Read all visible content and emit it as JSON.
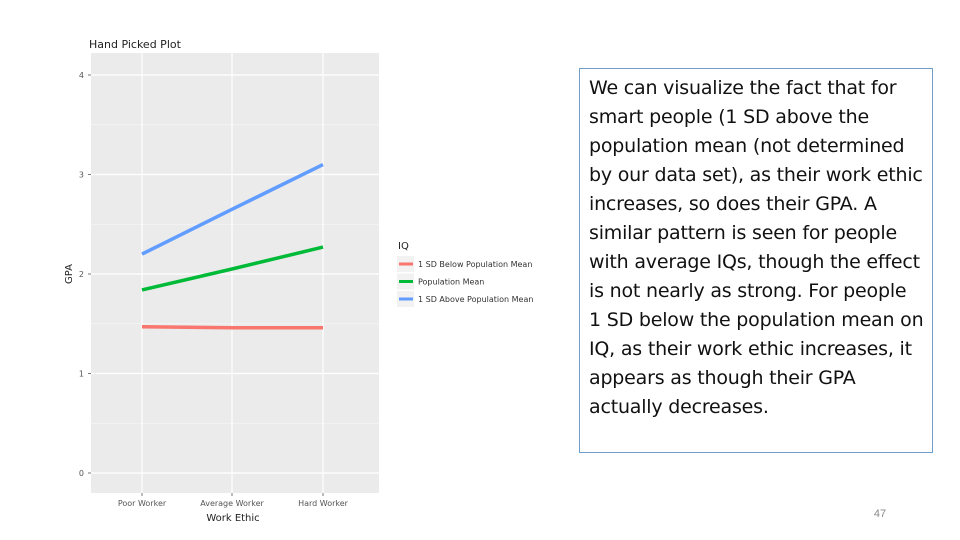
{
  "slide": {
    "body_text": "We can visualize the fact that for smart people (1 SD above the population mean (not determined by our data set), as their work ethic increases, so does their GPA. A similar pattern is seen for people with average IQs, though the effect is not nearly as strong. For people 1 SD below the population mean on IQ, as their work ethic increases, it appears as though their GPA actually decreases.",
    "slide_number": "47"
  },
  "chart_data": {
    "type": "line",
    "title": "Hand Picked Plot",
    "xlabel": "Work Ethic",
    "ylabel": "GPA",
    "categories": [
      "Poor Worker",
      "Average Worker",
      "Hard Worker"
    ],
    "ylim": [
      0,
      4
    ],
    "yticks": [
      0,
      1,
      2,
      3,
      4
    ],
    "grid": true,
    "legend_title": "IQ",
    "legend_position": "right",
    "series": [
      {
        "name": "1 SD Below Population Mean",
        "color": "#f8766d",
        "values": [
          1.47,
          1.46,
          1.46
        ]
      },
      {
        "name": "Population Mean",
        "color": "#00ba38",
        "values": [
          1.84,
          2.05,
          2.27
        ]
      },
      {
        "name": "1 SD Above Population Mean",
        "color": "#619cff",
        "values": [
          2.2,
          2.65,
          3.1
        ]
      }
    ]
  }
}
